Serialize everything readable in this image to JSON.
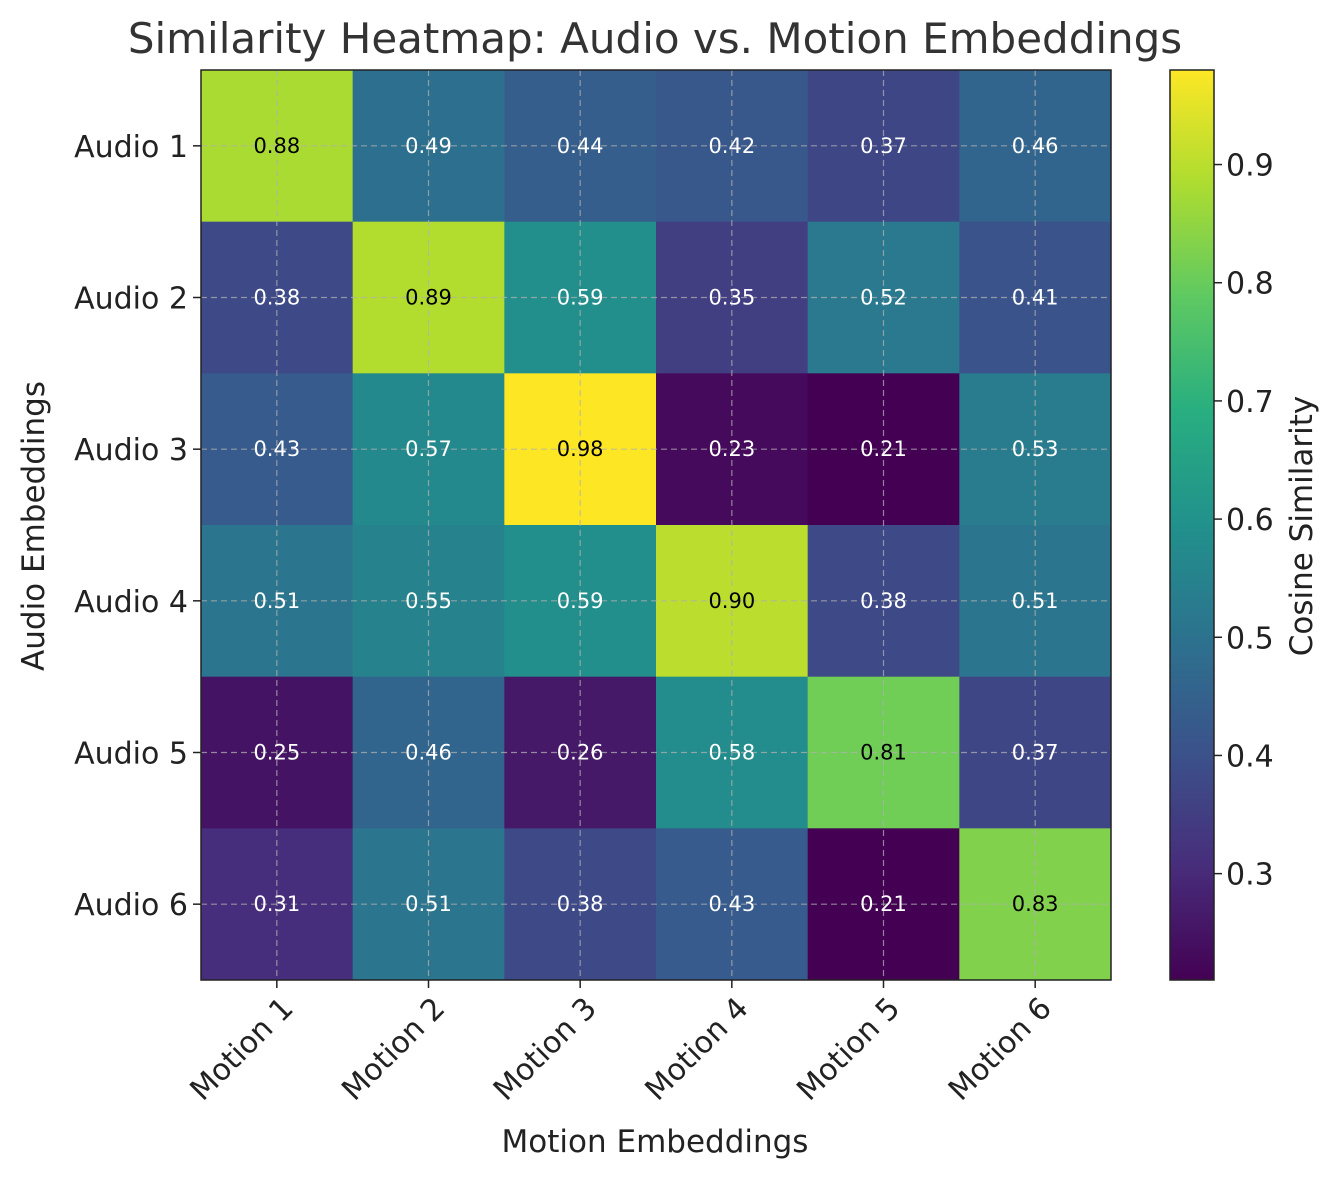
{
  "chart_data": {
    "type": "heatmap",
    "title": "Similarity Heatmap: Audio vs. Motion Embeddings",
    "xlabel": "Motion Embeddings",
    "ylabel": "Audio Embeddings",
    "x_categories": [
      "Motion 1",
      "Motion 2",
      "Motion 3",
      "Motion 4",
      "Motion 5",
      "Motion 6"
    ],
    "y_categories": [
      "Audio 1",
      "Audio 2",
      "Audio 3",
      "Audio 4",
      "Audio 5",
      "Audio 6"
    ],
    "values": [
      [
        0.88,
        0.49,
        0.44,
        0.42,
        0.37,
        0.46
      ],
      [
        0.38,
        0.89,
        0.59,
        0.35,
        0.52,
        0.41
      ],
      [
        0.43,
        0.57,
        0.98,
        0.23,
        0.21,
        0.53
      ],
      [
        0.51,
        0.55,
        0.59,
        0.9,
        0.38,
        0.51
      ],
      [
        0.25,
        0.46,
        0.26,
        0.58,
        0.81,
        0.37
      ],
      [
        0.31,
        0.51,
        0.38,
        0.43,
        0.21,
        0.83
      ]
    ],
    "colormap": "viridis",
    "colorbar": {
      "label": "Cosine Similarity",
      "range": [
        0.21,
        0.98
      ],
      "ticks": [
        "0.3",
        "0.4",
        "0.5",
        "0.6",
        "0.7",
        "0.8",
        "0.9"
      ]
    },
    "grid": true
  }
}
